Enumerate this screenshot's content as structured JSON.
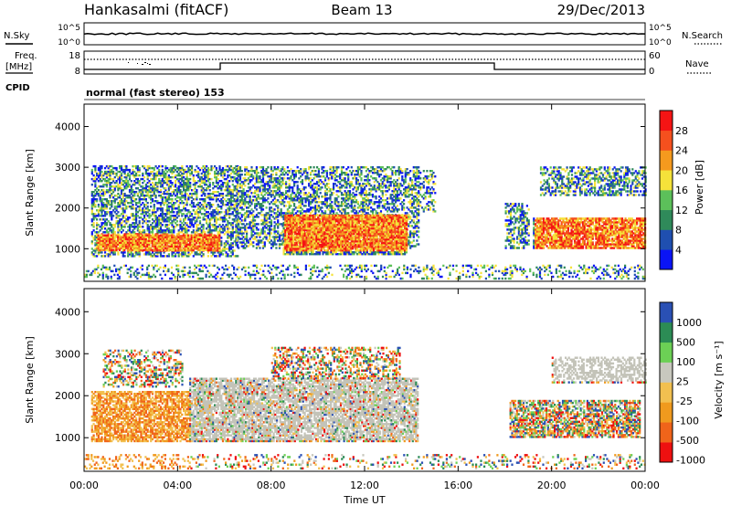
{
  "header": {
    "station": "Hankasalmi (fitACF)",
    "beam": "Beam 13",
    "date": "29/Dec/2013"
  },
  "panels": {
    "nsky_label": "N.Sky",
    "nsearch_label": "N.Search",
    "noise_ticks": [
      "10^5",
      "10^0"
    ],
    "freq_label_line1": "Freq.",
    "freq_label_line2": "[MHz]",
    "freq_ticks": [
      "18",
      "8"
    ],
    "nave_label": "Nave",
    "nave_ticks": [
      "60",
      "0"
    ],
    "cpid_label": "CPID",
    "cpid_text": "normal (fast stereo) 153"
  },
  "colors": {
    "power": [
      "#0a14f5",
      "#1f4fb0",
      "#2f8a5a",
      "#5cc05a",
      "#f5e23a",
      "#f59a1e",
      "#f5501e",
      "#f51414"
    ],
    "velocity": [
      "#ee1010",
      "#f0641a",
      "#f09a1e",
      "#f2c050",
      "#c8c8be",
      "#6cd055",
      "#2c8c55",
      "#2a50b4"
    ],
    "ground": "#c3c3b8"
  },
  "chart_data": [
    {
      "type": "heatmap",
      "name": "power",
      "xlabel": "Time UT",
      "ylabel": "Slant Range [km]",
      "x_ticks": [
        "00:00",
        "04:00",
        "08:00",
        "12:00",
        "16:00",
        "20:00",
        "00:00"
      ],
      "y_ticks": [
        "1000",
        "2000",
        "3000",
        "4000"
      ],
      "xlim_hours": [
        0,
        24
      ],
      "ylim_km": [
        200,
        4550
      ],
      "colorbar_label": "Power [dB]",
      "colorbar_ticks": [
        "4",
        "8",
        "12",
        "16",
        "20",
        "24",
        "28"
      ],
      "regions": [
        {
          "t": [
            0.3,
            6.6
          ],
          "r": [
            800,
            3050
          ],
          "density": 0.55
        },
        {
          "t": [
            0.5,
            5.8
          ],
          "r": [
            950,
            1350
          ],
          "density": 0.85
        },
        {
          "t": [
            6.5,
            14.3
          ],
          "r": [
            1000,
            3000
          ],
          "density": 0.5
        },
        {
          "t": [
            8.5,
            13.8
          ],
          "r": [
            850,
            1800
          ],
          "density": 0.9
        },
        {
          "t": [
            14.0,
            15.0
          ],
          "r": [
            1900,
            2900
          ],
          "density": 0.3
        },
        {
          "t": [
            18.0,
            19.0
          ],
          "r": [
            1000,
            2100
          ],
          "density": 0.5
        },
        {
          "t": [
            19.2,
            24.0
          ],
          "r": [
            1000,
            1750
          ],
          "density": 0.85
        },
        {
          "t": [
            19.5,
            24.0
          ],
          "r": [
            2300,
            3000
          ],
          "density": 0.5
        },
        {
          "t": [
            0.0,
            24.0
          ],
          "r": [
            250,
            600
          ],
          "density": 0.25
        }
      ]
    },
    {
      "type": "heatmap",
      "name": "velocity",
      "xlabel": "Time UT",
      "ylabel": "Slant Range [km]",
      "x_ticks": [
        "00:00",
        "04:00",
        "08:00",
        "12:00",
        "16:00",
        "20:00",
        "00:00"
      ],
      "y_ticks": [
        "1000",
        "2000",
        "3000",
        "4000"
      ],
      "xlim_hours": [
        0,
        24
      ],
      "ylim_km": [
        200,
        4550
      ],
      "colorbar_label": "Velocity [m s⁻¹]",
      "colorbar_ticks": [
        "1000",
        "500",
        "100",
        "25",
        "-25",
        "-100",
        "-500",
        "-1000"
      ],
      "regions": [
        {
          "t": [
            0.3,
            4.5
          ],
          "r": [
            900,
            2100
          ],
          "density": 0.7
        },
        {
          "t": [
            0.8,
            4.2
          ],
          "r": [
            2200,
            3100
          ],
          "density": 0.4
        },
        {
          "t": [
            4.5,
            14.3
          ],
          "r": [
            900,
            2400
          ],
          "density": 0.75
        },
        {
          "t": [
            8.0,
            13.5
          ],
          "r": [
            2400,
            3150
          ],
          "density": 0.45
        },
        {
          "t": [
            18.2,
            23.8
          ],
          "r": [
            1000,
            1900
          ],
          "density": 0.7
        },
        {
          "t": [
            20.0,
            24.0
          ],
          "r": [
            2300,
            2900
          ],
          "density": 0.5
        },
        {
          "t": [
            0.0,
            24.0
          ],
          "r": [
            250,
            600
          ],
          "density": 0.2
        }
      ]
    }
  ]
}
